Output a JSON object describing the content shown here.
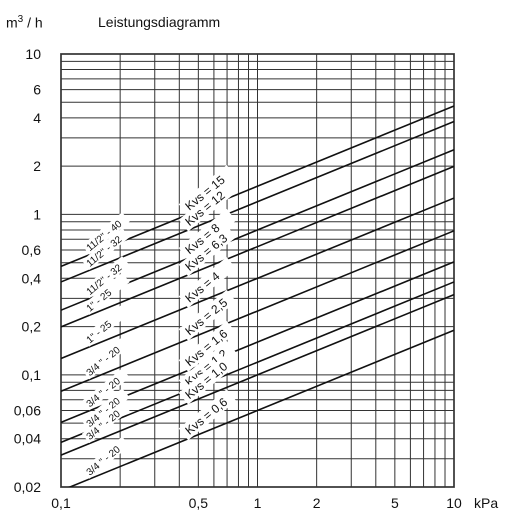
{
  "chart_data": {
    "type": "line",
    "title": "Leistungsdiagramm",
    "ylabel": "m³/h",
    "xlabel": "kPa",
    "xscale": "log",
    "yscale": "log",
    "xlim": [
      0.1,
      10
    ],
    "ylim": [
      0.02,
      10
    ],
    "grid": true,
    "x_ticks": [
      0.1,
      0.5,
      1,
      2,
      5,
      10
    ],
    "x_tick_labels": [
      "0,1",
      "0,5",
      "1",
      "2",
      "5",
      "10"
    ],
    "y_ticks": [
      0.02,
      0.04,
      0.06,
      0.1,
      0.2,
      0.4,
      0.6,
      1,
      2,
      4,
      6,
      10
    ],
    "y_tick_labels": [
      "0,02",
      "0,04",
      "0,06",
      "0,1",
      "0,2",
      "0,4",
      "0,6",
      "1",
      "2",
      "4",
      "6",
      "10"
    ],
    "x_grid": [
      0.1,
      0.2,
      0.3,
      0.4,
      0.5,
      0.6,
      0.7,
      0.8,
      0.9,
      1,
      2,
      3,
      4,
      5,
      6,
      7,
      8,
      9,
      10
    ],
    "y_grid": [
      0.02,
      0.03,
      0.04,
      0.05,
      0.06,
      0.07,
      0.08,
      0.09,
      0.1,
      0.2,
      0.3,
      0.4,
      0.5,
      0.6,
      0.7,
      0.8,
      0.9,
      1,
      2,
      3,
      4,
      5,
      6,
      7,
      8,
      9,
      10
    ],
    "series": [
      {
        "name": "Kvs = 15",
        "kvs": 15,
        "size_label": "11/2\" - 40"
      },
      {
        "name": "Kvs = 12",
        "kvs": 12,
        "size_label": "11/2\" - 32"
      },
      {
        "name": "Kvs = 8",
        "kvs": 8,
        "size_label": "11/2\" - 32"
      },
      {
        "name": "Kvs = 6,3",
        "kvs": 6.3,
        "size_label": "1\" - 25"
      },
      {
        "name": "Kvs = 4",
        "kvs": 4,
        "size_label": "1\" - 25"
      },
      {
        "name": "Kvs = 2,5",
        "kvs": 2.5,
        "size_label": "3/4 \" - 20"
      },
      {
        "name": "Kvs = 1,6",
        "kvs": 1.6,
        "size_label": "3/4 \" - 20"
      },
      {
        "name": "Kvs = 1,2",
        "kvs": 1.2,
        "size_label": "3/4 \" - 20"
      },
      {
        "name": "Kvs = 1,0",
        "kvs": 1.0,
        "size_label": "3/4 \" - 20"
      },
      {
        "name": "Kvs = 0,6",
        "kvs": 0.6,
        "size_label": "3/4 \" - 20"
      }
    ]
  },
  "header": {
    "y_unit_base": "m",
    "y_unit_sup": "3",
    "y_unit_rest": "/ h"
  }
}
